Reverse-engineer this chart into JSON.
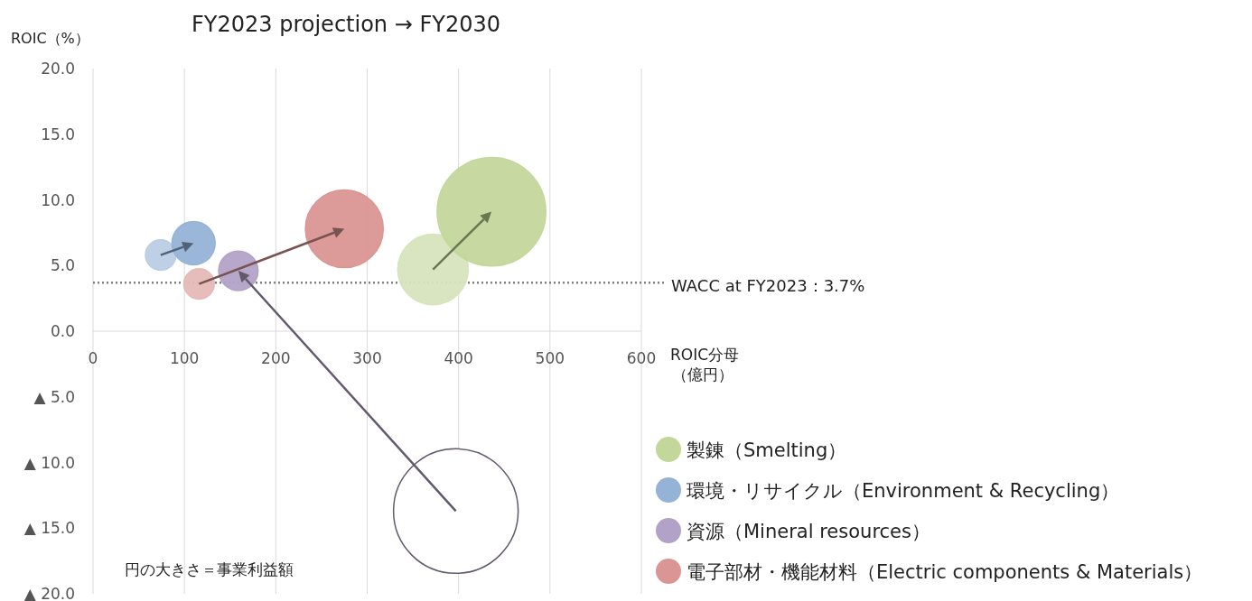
{
  "chart_data": {
    "type": "bubble",
    "title": "FY2023 projection → FY2030",
    "ylabel": "ROIC（%）",
    "xlabel": "ROIC分母（億円）",
    "xlim": [
      0,
      600
    ],
    "xticks": [
      0,
      100,
      200,
      300,
      400,
      500,
      600
    ],
    "ylim": [
      -20,
      20
    ],
    "yticks": [
      {
        "value": 20,
        "label": "20.0"
      },
      {
        "value": 15,
        "label": "15.0"
      },
      {
        "value": 10,
        "label": "10.0"
      },
      {
        "value": 5,
        "label": "5.0"
      },
      {
        "value": 0,
        "label": "0.0"
      },
      {
        "value": -5,
        "label": "▲ 5.0"
      },
      {
        "value": -10,
        "label": "▲ 10.0"
      },
      {
        "value": -15,
        "label": "▲ 15.0"
      },
      {
        "value": -20,
        "label": "▲ 20.0"
      }
    ],
    "grid": "x",
    "legend": "right",
    "series": [
      {
        "name": "製錬（Smelting）",
        "color": "#c4d79b",
        "colors": [
          "#d7e4bd",
          "#c4d79b"
        ],
        "x": [
          372,
          436
        ],
        "values": [
          4.7,
          9.1
        ],
        "sizes": [
          0.32,
          0.76
        ]
      },
      {
        "name": "環境・リサイクル（Environment & Recycling）",
        "color": "#95b3d7",
        "colors": [
          "#b9cde5",
          "#95b3d7"
        ],
        "x": [
          74,
          110
        ],
        "values": [
          5.8,
          6.7
        ],
        "sizes": [
          0.06,
          0.12
        ]
      },
      {
        "name": "資源（Mineral resources）",
        "color": "#b3a2c7",
        "colors": [
          "#ffffff",
          "#b3a2c7"
        ],
        "x": [
          397,
          159
        ],
        "values": [
          -13.7,
          4.6
        ],
        "sizes": [
          1,
          0.1
        ]
      },
      {
        "name": "電子部材・機能材料（Electric components & Materials）",
        "color": "#da9694",
        "colors": [
          "#e6b9b8",
          "#da9694"
        ],
        "x": [
          116,
          275
        ],
        "values": [
          3.6,
          7.8
        ],
        "sizes": [
          0.06,
          0.39
        ]
      }
    ],
    "ref_lines": [
      {
        "axis": "y",
        "value": 3.7,
        "label": "WACC at FY2023：3.7%",
        "color": "#7f7f7f",
        "line_style": "dotted"
      }
    ],
    "annotations": [
      "円の大きさ＝事業利益額"
    ]
  }
}
